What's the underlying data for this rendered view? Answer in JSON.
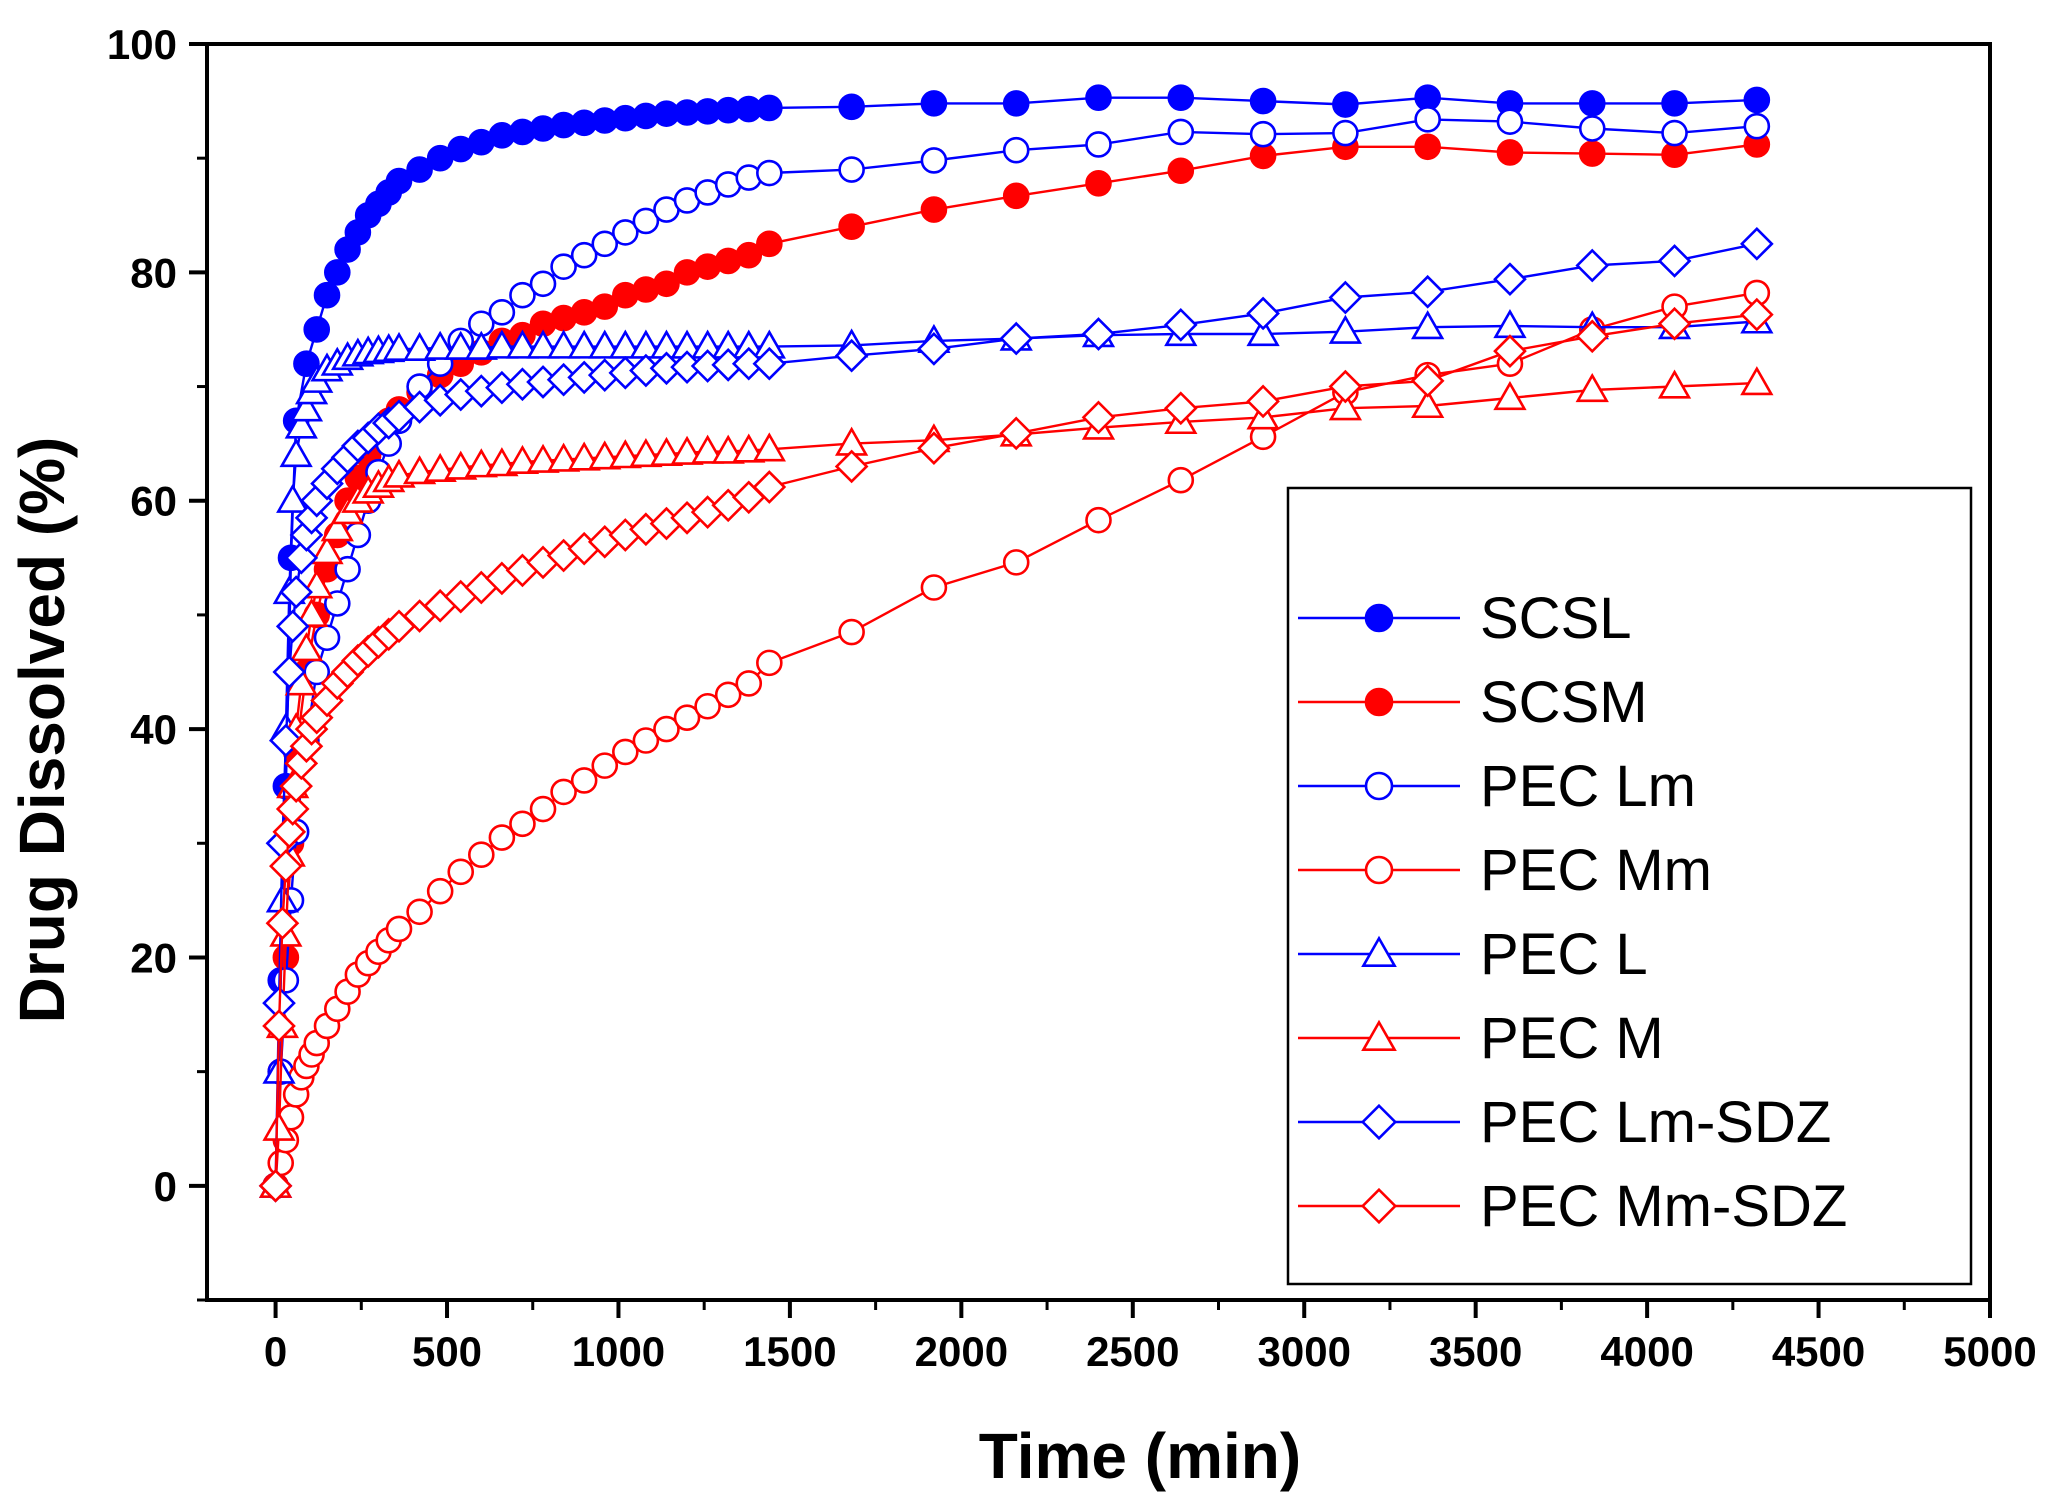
{
  "chart_data": {
    "type": "line",
    "title": "",
    "xlabel": "Time (min)",
    "ylabel": "Drug Dissolved (%)",
    "xlim": [
      -200,
      5000
    ],
    "ylim": [
      -10,
      100
    ],
    "xticks": [
      0,
      500,
      1000,
      1500,
      2000,
      2500,
      3000,
      3500,
      4000,
      4500,
      5000
    ],
    "xtick_labels": [
      "0",
      "500",
      "1000",
      "1500",
      "2000",
      "2500",
      "3000",
      "3500",
      "4000",
      "4500",
      "5000"
    ],
    "yticks": [
      0,
      20,
      40,
      60,
      80,
      100
    ],
    "ytick_labels": [
      "0",
      "20",
      "40",
      "60",
      "80",
      "100"
    ],
    "grid": false,
    "legend_position": "bottom-right",
    "colors": {
      "blue": "#0000ff",
      "red": "#ff0000",
      "axis": "#000000"
    },
    "series": [
      {
        "name": "SCSL",
        "color": "#0000ff",
        "marker": "circle",
        "filled": true,
        "x": [
          0,
          15,
          30,
          45,
          60,
          90,
          120,
          150,
          180,
          210,
          240,
          270,
          300,
          330,
          360,
          420,
          480,
          540,
          600,
          660,
          720,
          780,
          840,
          900,
          960,
          1020,
          1080,
          1140,
          1200,
          1260,
          1320,
          1380,
          1440,
          1680,
          1920,
          2160,
          2400,
          2640,
          2880,
          3120,
          3360,
          3600,
          3840,
          4080,
          4320
        ],
        "y": [
          0,
          18,
          35,
          55,
          67,
          72,
          75,
          78,
          80,
          82,
          83.5,
          85,
          86,
          87,
          88,
          89,
          90,
          90.8,
          91.4,
          92,
          92.3,
          92.6,
          92.9,
          93.1,
          93.3,
          93.5,
          93.7,
          93.9,
          94,
          94.1,
          94.2,
          94.3,
          94.4,
          94.5,
          94.8,
          94.8,
          95.3,
          95.3,
          95,
          94.7,
          95.3,
          94.8,
          94.8,
          94.8,
          95.1
        ]
      },
      {
        "name": "SCSM",
        "color": "#ff0000",
        "marker": "circle",
        "filled": true,
        "x": [
          0,
          15,
          30,
          45,
          60,
          90,
          120,
          150,
          180,
          210,
          240,
          270,
          300,
          330,
          360,
          420,
          480,
          540,
          600,
          660,
          720,
          780,
          840,
          900,
          960,
          1020,
          1080,
          1140,
          1200,
          1260,
          1320,
          1380,
          1440,
          1680,
          1920,
          2160,
          2400,
          2640,
          2880,
          3120,
          3360,
          3600,
          3840,
          4080,
          4320
        ],
        "y": [
          0,
          10,
          20,
          30,
          38,
          45,
          50,
          54,
          57,
          60,
          62,
          64,
          65.5,
          67,
          68,
          69.5,
          71,
          72,
          73,
          74,
          74.5,
          75.5,
          76,
          76.5,
          77,
          78,
          78.5,
          79,
          80,
          80.5,
          81,
          81.5,
          82.5,
          84,
          85.5,
          86.7,
          87.8,
          88.9,
          90.2,
          91,
          91,
          90.5,
          90.4,
          90.3,
          91.2
        ]
      },
      {
        "name": "PEC Lm",
        "color": "#0000ff",
        "marker": "circle",
        "filled": false,
        "x": [
          0,
          15,
          30,
          45,
          60,
          90,
          120,
          150,
          180,
          210,
          240,
          270,
          300,
          330,
          360,
          420,
          480,
          540,
          600,
          660,
          720,
          780,
          840,
          900,
          960,
          1020,
          1080,
          1140,
          1200,
          1260,
          1320,
          1380,
          1440,
          1680,
          1920,
          2160,
          2400,
          2640,
          2880,
          3120,
          3360,
          3600,
          3840,
          4080,
          4320
        ],
        "y": [
          0,
          10,
          18,
          25,
          31,
          39,
          45,
          48,
          51,
          54,
          57,
          60,
          62.5,
          65,
          67,
          70,
          72,
          74,
          75.5,
          76.5,
          78,
          79,
          80.5,
          81.5,
          82.5,
          83.5,
          84.5,
          85.5,
          86.3,
          87,
          87.7,
          88.3,
          88.7,
          89,
          89.8,
          90.7,
          91.2,
          92.3,
          92.1,
          92.2,
          93.4,
          93.2,
          92.6,
          92.2,
          92.8
        ]
      },
      {
        "name": "PEC Mm",
        "color": "#ff0000",
        "marker": "circle",
        "filled": false,
        "x": [
          0,
          15,
          30,
          45,
          60,
          75,
          90,
          105,
          120,
          150,
          180,
          210,
          240,
          270,
          300,
          330,
          360,
          420,
          480,
          540,
          600,
          660,
          720,
          780,
          840,
          900,
          960,
          1020,
          1080,
          1140,
          1200,
          1260,
          1320,
          1380,
          1440,
          1680,
          1920,
          2160,
          2400,
          2640,
          2880,
          3120,
          3360,
          3600,
          3840,
          4080,
          4320
        ],
        "y": [
          0,
          2,
          4,
          6,
          8,
          9.5,
          10.5,
          11.5,
          12.5,
          14,
          15.5,
          17,
          18.5,
          19.5,
          20.5,
          21.5,
          22.5,
          24,
          25.8,
          27.5,
          29,
          30.5,
          31.7,
          33,
          34.5,
          35.5,
          36.8,
          38,
          39,
          40,
          41,
          42,
          43,
          44,
          45.8,
          48.5,
          52.4,
          54.6,
          58.3,
          61.8,
          65.6,
          69.5,
          71,
          72,
          75,
          77,
          78.2
        ]
      },
      {
        "name": "PEC L",
        "color": "#0000ff",
        "marker": "triangle",
        "filled": false,
        "x": [
          0,
          10,
          20,
          30,
          40,
          50,
          60,
          75,
          90,
          105,
          120,
          150,
          180,
          210,
          240,
          270,
          300,
          330,
          360,
          420,
          480,
          540,
          600,
          660,
          720,
          780,
          840,
          900,
          960,
          1020,
          1080,
          1140,
          1200,
          1260,
          1320,
          1380,
          1440,
          1680,
          1920,
          2160,
          2400,
          2640,
          2880,
          3120,
          3360,
          3600,
          3840,
          4080,
          4320
        ],
        "y": [
          0,
          10,
          25,
          40,
          52,
          60,
          64,
          66.5,
          68,
          69.5,
          70.5,
          71.5,
          72,
          72.5,
          72.8,
          73,
          73.1,
          73.2,
          73.3,
          73.3,
          73.4,
          73.4,
          73.4,
          73.5,
          73.5,
          73.5,
          73.5,
          73.5,
          73.5,
          73.5,
          73.5,
          73.5,
          73.5,
          73.5,
          73.5,
          73.5,
          73.5,
          73.6,
          74,
          74.2,
          74.5,
          74.6,
          74.6,
          74.8,
          75.2,
          75.3,
          75.2,
          75.2,
          75.7
        ]
      },
      {
        "name": "PEC M",
        "color": "#ff0000",
        "marker": "triangle",
        "filled": false,
        "x": [
          0,
          10,
          20,
          30,
          40,
          50,
          60,
          75,
          90,
          105,
          120,
          150,
          180,
          210,
          240,
          270,
          300,
          330,
          360,
          420,
          480,
          540,
          600,
          660,
          720,
          780,
          840,
          900,
          960,
          1020,
          1080,
          1140,
          1200,
          1260,
          1320,
          1380,
          1440,
          1680,
          1920,
          2160,
          2400,
          2640,
          2880,
          3120,
          3360,
          3600,
          3840,
          4080,
          4320
        ],
        "y": [
          0,
          5,
          14,
          22,
          29,
          35,
          40,
          44,
          47,
          50,
          52.5,
          55.5,
          57.5,
          59,
          60,
          60.8,
          61.3,
          61.8,
          62.2,
          62.5,
          62.7,
          62.9,
          63.1,
          63.2,
          63.4,
          63.5,
          63.6,
          63.7,
          63.8,
          63.9,
          64,
          64.1,
          64.2,
          64.3,
          64.3,
          64.4,
          64.5,
          65,
          65.3,
          65.8,
          66.4,
          66.9,
          67.3,
          68.1,
          68.3,
          69,
          69.7,
          70,
          70.3
        ]
      },
      {
        "name": "PEC Lm-SDZ",
        "color": "#0000ff",
        "marker": "diamond",
        "filled": false,
        "x": [
          0,
          10,
          20,
          30,
          40,
          50,
          60,
          75,
          90,
          105,
          120,
          150,
          180,
          210,
          240,
          270,
          300,
          330,
          360,
          420,
          480,
          540,
          600,
          660,
          720,
          780,
          840,
          900,
          960,
          1020,
          1080,
          1140,
          1200,
          1260,
          1320,
          1380,
          1440,
          1680,
          1920,
          2160,
          2400,
          2640,
          2880,
          3120,
          3360,
          3600,
          3840,
          4080,
          4320
        ],
        "y": [
          0,
          16,
          30,
          39,
          45,
          49,
          52,
          55,
          57,
          58.5,
          60,
          61.5,
          62.8,
          63.8,
          64.8,
          65.5,
          66.3,
          66.8,
          67.4,
          68.2,
          68.8,
          69.3,
          69.6,
          69.9,
          70.2,
          70.4,
          70.6,
          70.8,
          71,
          71.2,
          71.4,
          71.6,
          71.7,
          71.8,
          71.9,
          72,
          72,
          72.7,
          73.3,
          74.2,
          74.6,
          75.4,
          76.4,
          77.8,
          78.3,
          79.4,
          80.6,
          81,
          82.5
        ]
      },
      {
        "name": "PEC Mm-SDZ",
        "color": "#ff0000",
        "marker": "diamond",
        "filled": false,
        "x": [
          0,
          10,
          20,
          30,
          40,
          50,
          60,
          75,
          90,
          105,
          120,
          150,
          180,
          210,
          240,
          270,
          300,
          330,
          360,
          420,
          480,
          540,
          600,
          660,
          720,
          780,
          840,
          900,
          960,
          1020,
          1080,
          1140,
          1200,
          1260,
          1320,
          1380,
          1440,
          1680,
          1920,
          2160,
          2400,
          2640,
          2880,
          3120,
          3360,
          3600,
          3840,
          4080,
          4320
        ],
        "y": [
          0,
          14,
          23,
          28,
          31,
          33,
          35,
          37,
          38.5,
          40,
          41,
          42.5,
          44,
          45,
          46,
          46.8,
          47.6,
          48.3,
          49,
          49.9,
          50.8,
          51.6,
          52.4,
          53.2,
          53.9,
          54.6,
          55.2,
          55.8,
          56.4,
          57,
          57.5,
          58,
          58.5,
          59,
          59.6,
          60.3,
          61.2,
          63,
          64.6,
          65.9,
          67.3,
          68.1,
          68.7,
          70,
          70.5,
          73.1,
          74.4,
          75.5,
          76.3
        ]
      }
    ]
  }
}
